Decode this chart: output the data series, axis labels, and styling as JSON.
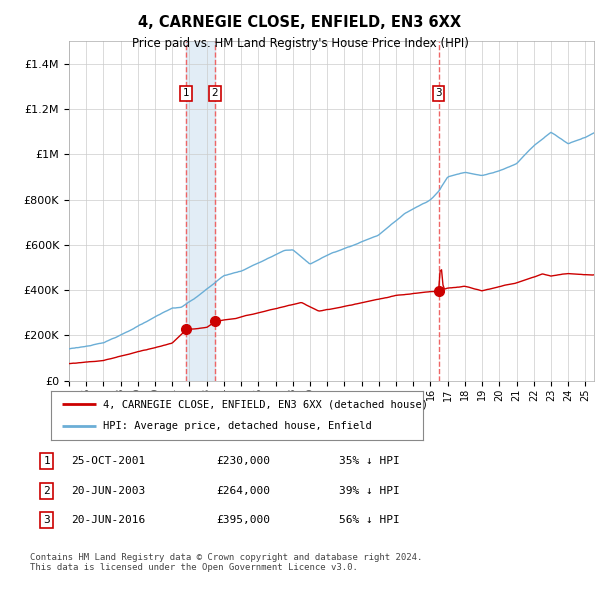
{
  "title": "4, CARNEGIE CLOSE, ENFIELD, EN3 6XX",
  "subtitle": "Price paid vs. HM Land Registry's House Price Index (HPI)",
  "ylim": [
    0,
    1500000
  ],
  "yticks": [
    0,
    200000,
    400000,
    600000,
    800000,
    1000000,
    1200000,
    1400000
  ],
  "ytick_labels": [
    "£0",
    "£200K",
    "£400K",
    "£600K",
    "£800K",
    "£1M",
    "£1.2M",
    "£1.4M"
  ],
  "xlim_start": 1995.0,
  "xlim_end": 2025.5,
  "sale_dates": [
    2001.82,
    2003.47,
    2016.47
  ],
  "sale_prices": [
    230000,
    264000,
    395000
  ],
  "sale_labels": [
    "1",
    "2",
    "3"
  ],
  "hpi_color": "#6BAED6",
  "hpi_fill_color": "#C6DCEF",
  "price_color": "#CC0000",
  "vline_color": "#EE6666",
  "legend_items": [
    "4, CARNEGIE CLOSE, ENFIELD, EN3 6XX (detached house)",
    "HPI: Average price, detached house, Enfield"
  ],
  "table_rows": [
    {
      "label": "1",
      "date": "25-OCT-2001",
      "price": "£230,000",
      "hpi": "35% ↓ HPI"
    },
    {
      "label": "2",
      "date": "20-JUN-2003",
      "price": "£264,000",
      "hpi": "39% ↓ HPI"
    },
    {
      "label": "3",
      "date": "20-JUN-2016",
      "price": "£395,000",
      "hpi": "56% ↓ HPI"
    }
  ],
  "footnote1": "Contains HM Land Registry data © Crown copyright and database right 2024.",
  "footnote2": "This data is licensed under the Open Government Licence v3.0.",
  "background_color": "#FFFFFF"
}
